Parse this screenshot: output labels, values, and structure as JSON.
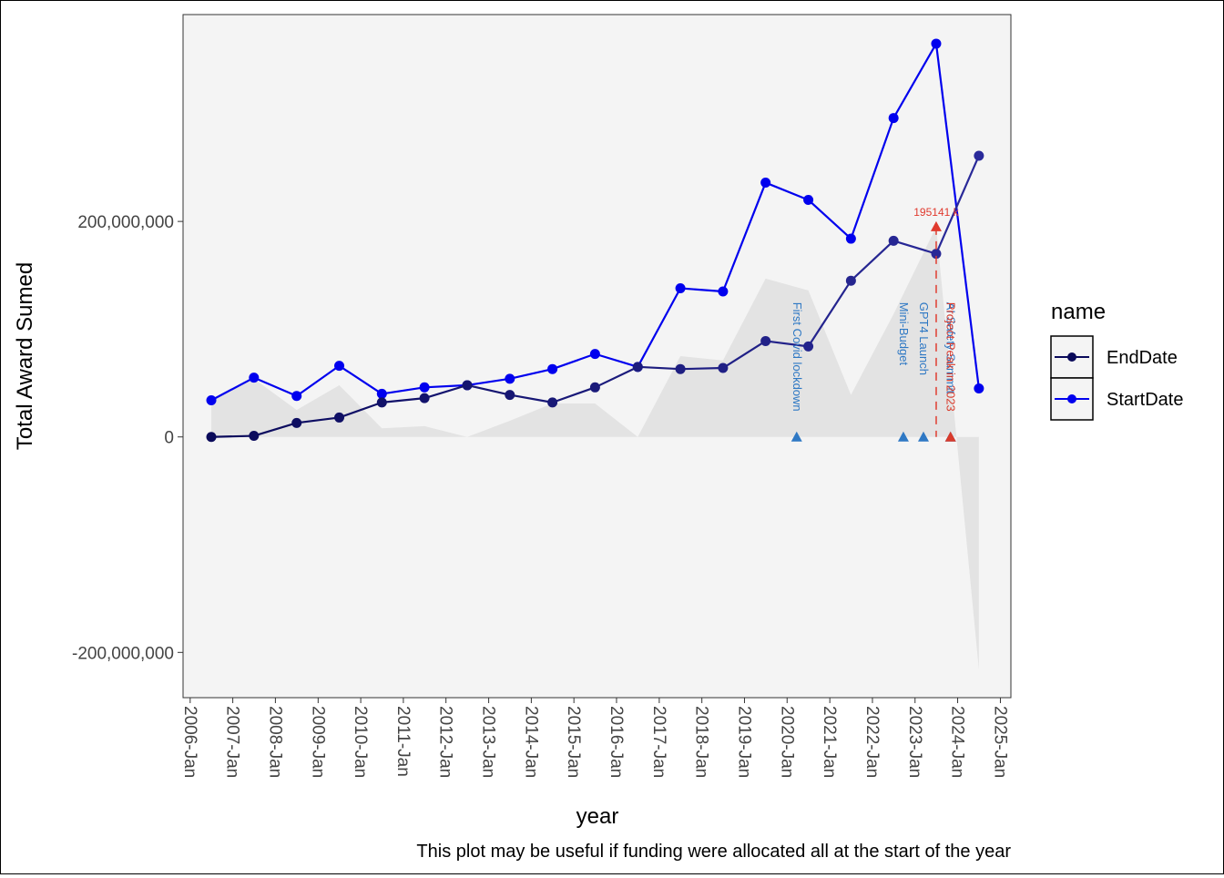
{
  "chart_data": {
    "type": "line",
    "xlabel": "year",
    "ylabel": "Total Award Sumed",
    "caption": "This plot may be useful if funding were allocated all at the start of the year",
    "x_ticks": [
      "2006-Jan",
      "2007-Jan",
      "2008-Jan",
      "2009-Jan",
      "2010-Jan",
      "2011-Jan",
      "2012-Jan",
      "2013-Jan",
      "2014-Jan",
      "2015-Jan",
      "2016-Jan",
      "2017-Jan",
      "2018-Jan",
      "2019-Jan",
      "2020-Jan",
      "2021-Jan",
      "2022-Jan",
      "2023-Jan",
      "2024-Jan",
      "2025-Jan"
    ],
    "y_ticks": [
      -200000000,
      0,
      200000000
    ],
    "y_tick_labels": [
      "-200,000,000",
      "0",
      "200,000,000"
    ],
    "ylim": [
      -242000000,
      392000000
    ],
    "xlim": [
      "2005-11-01",
      "2025-04-01"
    ],
    "grid": false,
    "panel_background": "#f4f4f4",
    "legend": {
      "title": "name",
      "position": "right",
      "entries": [
        {
          "label": "EndDate",
          "color": "#0a0a5a"
        },
        {
          "label": "StartDate",
          "color": "#0000ee"
        }
      ]
    },
    "x": [
      "2006-07-01",
      "2007-07-01",
      "2008-07-01",
      "2009-07-01",
      "2010-07-01",
      "2011-07-01",
      "2012-07-01",
      "2013-07-01",
      "2014-07-01",
      "2015-07-01",
      "2016-07-01",
      "2017-07-01",
      "2018-07-01",
      "2019-07-01",
      "2020-07-01",
      "2021-07-01",
      "2022-07-01",
      "2023-07-01",
      "2024-07-01"
    ],
    "series": [
      {
        "name": "StartDate",
        "color": "#0000ee",
        "values": [
          34000000,
          55000000,
          38000000,
          66000000,
          40000000,
          46000000,
          48000000,
          54000000,
          63000000,
          77000000,
          65000000,
          138000000,
          135000000,
          236000000,
          220000000,
          184000000,
          296000000,
          365000000,
          45000000
        ]
      },
      {
        "name": "EndDate",
        "color_gradient": [
          "#0a0a5a",
          "#2a2a9a"
        ],
        "values": [
          0,
          1000000,
          13000000,
          18000000,
          32000000,
          36000000,
          48000000,
          39000000,
          32000000,
          46000000,
          65000000,
          63000000,
          64000000,
          89000000,
          84000000,
          145000000,
          182000000,
          170000000,
          261000000
        ]
      }
    ],
    "difference_area": {
      "color": "#e3e3e3",
      "description_series": "StartDate minus EndDate",
      "values": [
        34000000,
        54000000,
        25000000,
        48000000,
        8000000,
        10000000,
        0,
        15000000,
        31000000,
        31000000,
        0,
        75000000,
        71000000,
        147000000,
        136000000,
        39000000,
        114000000,
        195000000,
        -216000000
      ]
    },
    "annotations": [
      {
        "date": "2020-03-23",
        "label": "First Covid lockdown",
        "color": "#2e78c4",
        "y": 0
      },
      {
        "date": "2022-09-23",
        "label": "Mini-Budget",
        "color": "#2e78c4",
        "y": 0
      },
      {
        "date": "2023-03-14",
        "label": "GPT4 Launch",
        "color": "#2e78c4",
        "y": 0
      },
      {
        "date": "2023-11-01",
        "label": "AI Safety Summit",
        "color": "#2e78c4",
        "y": 0
      },
      {
        "date": "2023-11-01",
        "label": "Project Peak in 2023",
        "color": "#d93a2b",
        "y": 0
      }
    ],
    "peak_marker": {
      "date": "2023-07-01",
      "value": 195141000,
      "label": "195141 k",
      "color": "#e03a2e"
    }
  }
}
